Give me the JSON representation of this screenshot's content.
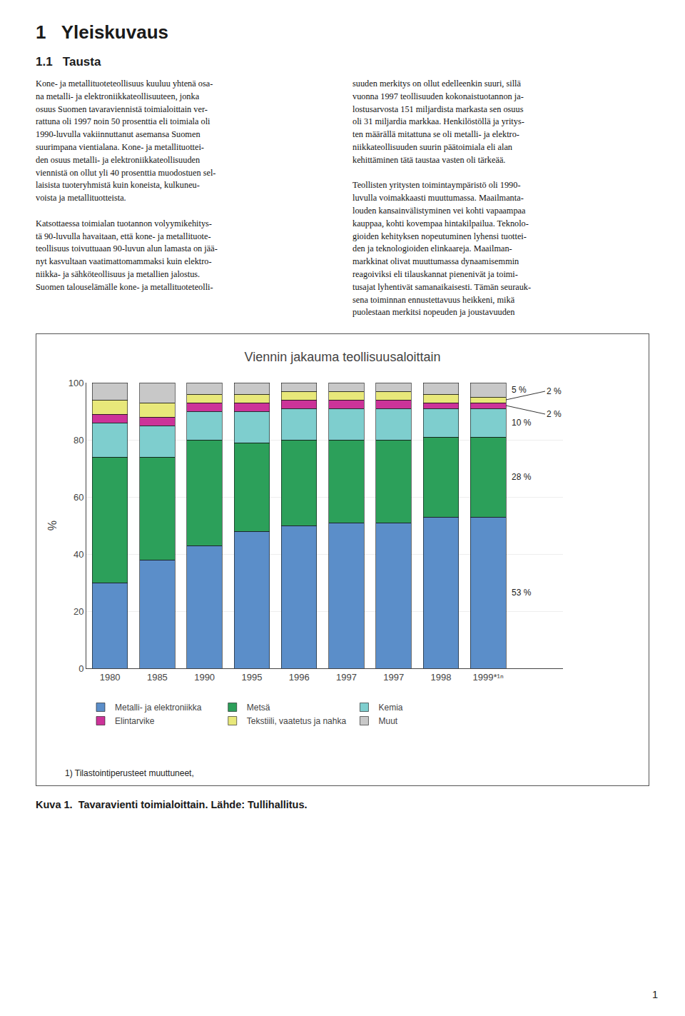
{
  "page_title": "1   Yleiskuvaus",
  "section_title": "1.1   Tausta",
  "body_text": [
    "Kone- ja metallituoteteollisuus kuuluu yhtenä osa-\nna metalli- ja elektroniikkateollisuuteen, jonka\nosuus Suomen tavaraviennistä toimialoittain ver-\nrattuna oli 1997 noin 50 prosenttia eli toimiala oli\n1990-luvulla vakiinnuttanut asemansa Suomen\nsuurimpana vientialana. Kone- ja metallituottei-\nden osuus metalli- ja elektroniikkateollisuuden\nviennistä on ollut yli 40 prosenttia muodostuen sel-\nlaisista tuoteryhmistä kuin koneista, kulkuneu-\nvoista ja metallituotteista.\n\nKatsottaessa toimialan tuotannon volyymikehitys-\ntä 90-luvulla havaitaan, että kone- ja metallituote-\nteollisuus toivuttuaan 90-luvun alun lamasta on jää-\nnyt kasvultaan vaatimattomammaksi kuin elektro-\nniikka- ja sähköteollisuus ja metallien jalostus.\nSuomen talouselämälle kone- ja metallituoteteolli-",
    "suuden merkitys on ollut edelleenkin suuri, sillä\nvuonna 1997 teollisuuden kokonaistuotannon ja-\nlostusarvosta 151 miljardista markasta sen osuus\noli 31 miljardia markkaa. Henkilöstöllä ja yritys-\nten määrällä mitattuna se oli metalli- ja elektro-\nniikkateollisuuden suurin päätoimiala eli alan\nkehittäminen tätä taustaa vasten oli tärkeää.\n\nTeollisten yritysten toimintaympäristö oli 1990-\nluvulla voimakkaasti muuttumassa. Maailmanta-\nlouden kansainvälistyminen vei kohti vapaampaa\nkauppaa, kohti kovempaa hintakilpailua. Teknolo-\ngioiden kehityksen nopeutuminen lyhensi tuottei-\nden ja teknologioiden elinkaareja. Maailman-\nmarkkinat olivat muuttumassa dynaamisemmin\nreagoiviksi eli tilauskannat pienenivät ja toimi-\ntusajat lyhentivät samanaikaisesti. Tämän seurauk-\nsena toiminnan ennustettavuus heikkeni, mikä\npuolestaan merkitsi nopeuden ja joustavuuden"
  ],
  "chart_data": {
    "type": "bar",
    "stacked": true,
    "title": "Viennin jakauma teollisuusaloittain",
    "ylabel": "%",
    "categories": [
      "1980",
      "1985",
      "1990",
      "1995",
      "1996",
      "1997",
      "1997",
      "1998",
      "1999*¹ⁿ"
    ],
    "series": [
      {
        "name": "Metalli- ja elektroniikka",
        "color": "#5b8ec9",
        "values": [
          30,
          38,
          43,
          48,
          50,
          51,
          51,
          53,
          53
        ],
        "value_labels": [
          null,
          null,
          null,
          null,
          null,
          null,
          null,
          null,
          "53 %"
        ]
      },
      {
        "name": "Metsä",
        "color": "#2ca05a",
        "values": [
          44,
          36,
          37,
          31,
          30,
          29,
          29,
          28,
          28
        ],
        "value_labels": [
          null,
          null,
          null,
          null,
          null,
          null,
          null,
          null,
          "28 %"
        ]
      },
      {
        "name": "Kemia",
        "color": "#7ecece",
        "values": [
          12,
          11,
          10,
          11,
          11,
          11,
          11,
          10,
          10
        ],
        "value_labels": [
          null,
          null,
          null,
          null,
          null,
          null,
          null,
          null,
          "10 %"
        ]
      },
      {
        "name": "Elintarvike",
        "color": "#cc3399",
        "values": [
          3,
          3,
          3,
          3,
          3,
          3,
          3,
          2,
          2
        ],
        "value_labels": [
          null,
          null,
          null,
          null,
          null,
          null,
          null,
          null,
          "2 %"
        ]
      },
      {
        "name": "Tekstiili, vaatetus ja nahka",
        "color": "#e8e87a",
        "values": [
          5,
          5,
          3,
          3,
          3,
          3,
          3,
          3,
          2
        ],
        "value_labels": [
          null,
          null,
          null,
          null,
          null,
          null,
          null,
          null,
          "2 %"
        ]
      },
      {
        "name": "Muut",
        "color": "#c8c8c8",
        "values": [
          6,
          7,
          4,
          4,
          3,
          3,
          3,
          4,
          5
        ],
        "value_labels": [
          null,
          null,
          null,
          null,
          null,
          null,
          null,
          null,
          "5 %"
        ]
      }
    ],
    "ylim": [
      0,
      100
    ],
    "yticks": [
      0,
      20,
      40,
      60,
      80,
      100
    ],
    "grid": true,
    "legend": "bottom",
    "note": "1) Tilastointiperusteet muuttuneet,"
  },
  "caption": "Kuva 1.  Tavaravienti toimialoittain. Lähde: Tullihallitus.",
  "page_number": 1
}
